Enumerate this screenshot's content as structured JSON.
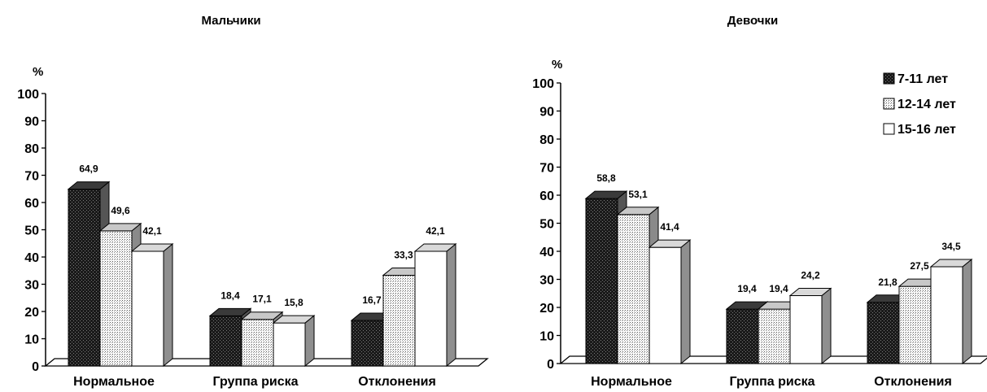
{
  "chart_data": [
    {
      "type": "bar",
      "title": "Мальчики",
      "ylabel": "%",
      "ylim": [
        0,
        100
      ],
      "yticks": [
        "0",
        "10",
        "20",
        "30",
        "40",
        "50",
        "60",
        "70",
        "80",
        "90",
        "100"
      ],
      "categories": [
        "Нормальное",
        "Группа риска",
        "Отклонения"
      ],
      "series": [
        {
          "name": "7-11 лет",
          "values": [
            64.9,
            18.4,
            16.7
          ],
          "labels": [
            "64,9",
            "18,4",
            "16,7"
          ]
        },
        {
          "name": "12-14 лет",
          "values": [
            49.6,
            17.1,
            33.3
          ],
          "labels": [
            "49,6",
            "17,1",
            "33,3"
          ]
        },
        {
          "name": "15-16 лет",
          "values": [
            42.1,
            15.8,
            42.1
          ],
          "labels": [
            "42,1",
            "15,8",
            "42,1"
          ]
        }
      ],
      "legend": "none",
      "grid": false
    },
    {
      "type": "bar",
      "title": "Девочки",
      "ylabel": "%",
      "ylim": [
        0,
        100
      ],
      "yticks": [
        "0",
        "10",
        "20",
        "30",
        "40",
        "50",
        "60",
        "70",
        "80",
        "90",
        "100"
      ],
      "categories": [
        "Нормальное",
        "Группа риска",
        "Отклонения"
      ],
      "series": [
        {
          "name": "7-11 лет",
          "values": [
            58.8,
            19.4,
            21.8
          ],
          "labels": [
            "58,8",
            "19,4",
            "21,8"
          ]
        },
        {
          "name": "12-14 лет",
          "values": [
            53.1,
            19.4,
            27.5
          ],
          "labels": [
            "53,1",
            "19,4",
            "27,5"
          ]
        },
        {
          "name": "15-16 лет",
          "values": [
            41.4,
            24.2,
            34.5
          ],
          "labels": [
            "41,4",
            "24,2",
            "34,5"
          ]
        }
      ],
      "legend": "top-right",
      "grid": false
    }
  ]
}
